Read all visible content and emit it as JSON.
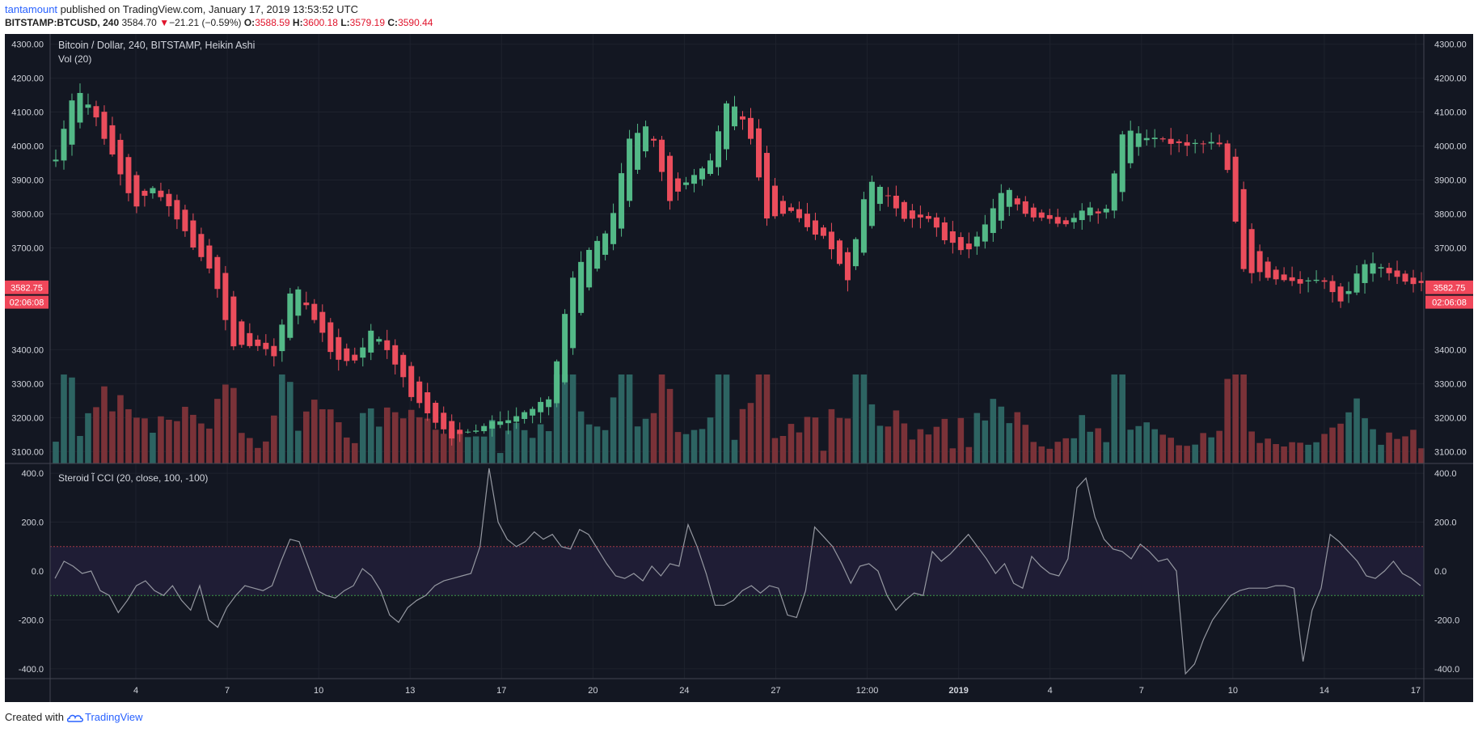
{
  "header": {
    "author": "tantamount",
    "published_text": "published on TradingView.com, January 17, 2019 13:53:52 UTC"
  },
  "ohlc_bar": {
    "symbol": "BITSTAMP:BTCUSD, 240",
    "last": "3584.70",
    "change_arrow": "▼",
    "change": "−21.21 (−0.59%)",
    "o_label": "O:",
    "o_value": "3588.59",
    "h_label": "H:",
    "h_value": "3600.18",
    "l_label": "L:",
    "l_value": "3579.19",
    "c_label": "C:",
    "c_value": "3590.44"
  },
  "main_pane": {
    "legend_title": "Bitcoin / Dollar, 240, BITSTAMP, Heikin Ashi",
    "legend_volume": "Vol (20)",
    "price_ticks": [
      "4300.00",
      "4200.00",
      "4100.00",
      "4000.00",
      "3900.00",
      "3800.00",
      "3700.00",
      "3400.00",
      "3300.00",
      "3200.00",
      "3100.00"
    ],
    "price_tick_values": [
      4300,
      4200,
      4100,
      4000,
      3900,
      3800,
      3700,
      3400,
      3300,
      3200,
      3100
    ],
    "price_range": [
      3065,
      4330
    ],
    "markers": [
      {
        "text": "3584.70",
        "color": "#f0475a"
      },
      {
        "text": "3582.75",
        "color": "#f0475a"
      },
      {
        "text": "02:06:08",
        "color": "#f0475a"
      }
    ],
    "marker_values": [
      3584.7,
      3582.75,
      3540
    ]
  },
  "cci_pane": {
    "legend": "Steroid Ĩ CCI (20, close, 100, -100)",
    "ticks": [
      "400.0",
      "200.0",
      "0.0",
      "-200.0",
      "-400.0"
    ],
    "tick_values": [
      400,
      200,
      0,
      -200,
      -400
    ],
    "range": [
      -440,
      440
    ],
    "upper_band": 100,
    "lower_band": -100
  },
  "time_axis": {
    "labels": [
      "4",
      "7",
      "10",
      "13",
      "17",
      "20",
      "24",
      "27",
      "12:00",
      "2019",
      "4",
      "7",
      "10",
      "14",
      "17"
    ],
    "bold_label": "2019"
  },
  "footer": {
    "created_with": "Created with",
    "brand": "TradingView"
  },
  "colors": {
    "background": "#131722",
    "up": "#53b987",
    "down": "#eb4d5c",
    "volume_up": "#2d6462",
    "volume_down": "#7a3238",
    "cci_line": "#9598a1",
    "band_fill": "#1f1d35",
    "upper_band": "#a33a46",
    "lower_band": "#3f9a48",
    "accent": "#2962ff"
  },
  "chart_data": {
    "type": "candlestick",
    "title": "Bitcoin / Dollar, 240, BITSTAMP, Heikin Ashi",
    "x_labels": [
      "4",
      "7",
      "10",
      "13",
      "17",
      "20",
      "24",
      "27",
      "12:00",
      "2019",
      "4",
      "7",
      "10",
      "14",
      "17"
    ],
    "ylim": [
      3065,
      4330
    ],
    "anchor_closes": [
      3960,
      4180,
      4090,
      3950,
      3820,
      3880,
      3800,
      3700,
      3620,
      3400,
      3420,
      3380,
      3600,
      3500,
      3380,
      3360,
      3460,
      3380,
      3260,
      3200,
      3140,
      3160,
      3190,
      3200,
      3220,
      3260,
      3600,
      3700,
      3760,
      4030,
      4060,
      3830,
      3900,
      3950,
      4150,
      4050,
      3770,
      3820,
      3760,
      3720,
      3600,
      3900,
      3860,
      3780,
      3790,
      3720,
      3690,
      3780,
      3880,
      3800,
      3790,
      3770,
      3820,
      3800,
      4060,
      4030,
      4020,
      4000,
      4010,
      4000,
      3640,
      3620,
      3610,
      3600,
      3610,
      3530,
      3660,
      3640,
      3600,
      3590
    ],
    "volume_range": [
      0,
      100
    ],
    "cci_series": [
      -30,
      40,
      20,
      -10,
      0,
      -80,
      -100,
      -170,
      -120,
      -60,
      -40,
      -80,
      -100,
      -60,
      -120,
      -160,
      -60,
      -200,
      -230,
      -150,
      -100,
      -60,
      -70,
      -80,
      -60,
      40,
      130,
      120,
      20,
      -80,
      -100,
      -110,
      -80,
      -60,
      10,
      -20,
      -80,
      -180,
      -210,
      -150,
      -120,
      -100,
      -60,
      -40,
      -30,
      -20,
      -10,
      100,
      420,
      200,
      130,
      100,
      120,
      160,
      130,
      150,
      100,
      90,
      170,
      150,
      90,
      30,
      -20,
      -30,
      -10,
      -40,
      20,
      -20,
      30,
      20,
      190,
      100,
      -10,
      -140,
      -140,
      -120,
      -80,
      -60,
      -90,
      -60,
      -70,
      -180,
      -190,
      -80,
      180,
      140,
      100,
      30,
      -50,
      20,
      30,
      0,
      -100,
      -160,
      -120,
      -90,
      -100,
      80,
      40,
      70,
      110,
      150,
      100,
      50,
      -10,
      30,
      -50,
      -70,
      60,
      20,
      -10,
      -20,
      50,
      340,
      380,
      220,
      130,
      90,
      80,
      50,
      110,
      80,
      40,
      50,
      0,
      -420,
      -380,
      -280,
      -200,
      -150,
      -100,
      -80,
      -70,
      -70,
      -70,
      -60,
      -60,
      -70,
      -370,
      -160,
      -70,
      150,
      120,
      80,
      40,
      -20,
      -30,
      0,
      40,
      -10,
      -30,
      -60
    ]
  }
}
